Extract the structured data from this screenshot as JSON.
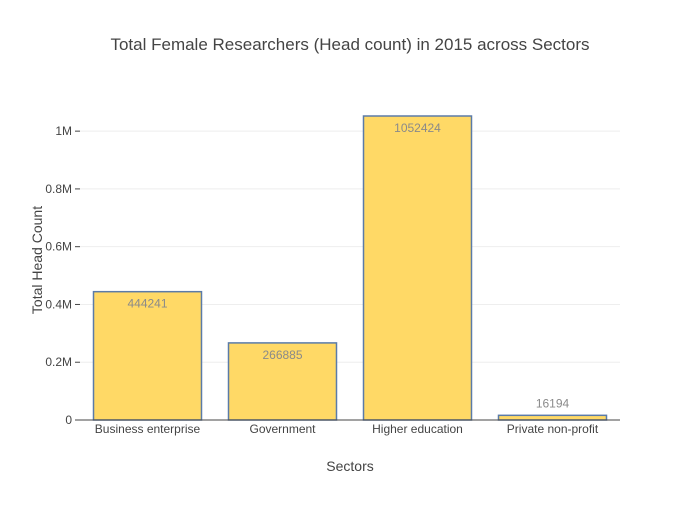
{
  "chart_data": {
    "type": "bar",
    "title": "Total Female Researchers (Head count) in 2015 across Sectors",
    "xlabel": "Sectors",
    "ylabel": "Total Head Count",
    "categories": [
      "Business enterprise",
      "Government",
      "Higher education",
      "Private non-profit"
    ],
    "values": [
      444241,
      266885,
      1052424,
      16194
    ],
    "data_labels": [
      "444241",
      "266885",
      "1052424",
      "16194"
    ],
    "ylim": [
      0,
      1107815
    ],
    "yticks": [
      0,
      200000,
      400000,
      600000,
      800000,
      1000000
    ],
    "ytick_labels": [
      "0",
      "0.2M",
      "0.4M",
      "0.6M",
      "0.8M",
      "1M"
    ],
    "grid": true,
    "legend": "none",
    "colors": {
      "bar_fill": "#ffd966",
      "bar_stroke": "#5b7ba8",
      "label_inside": "#8a8a8a",
      "label_outside": "#8a8a8a"
    }
  }
}
